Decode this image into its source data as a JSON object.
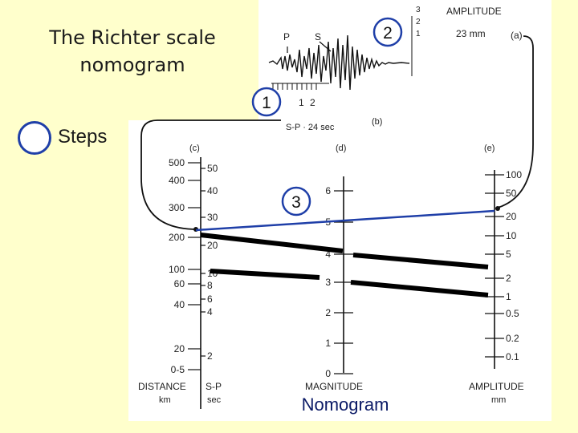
{
  "slide": {
    "title": "The Richter scale nomogram",
    "steps_label": "Steps",
    "caption": "Nomogram",
    "accent_color": "#1f3fa8",
    "background_color": "#ffffcc"
  },
  "figure": {
    "panel_labels": {
      "a": "(a)",
      "b": "(b)",
      "c": "(c)",
      "d": "(d)",
      "e": "(e)"
    },
    "seismogram": {
      "amplitude_heading": "AMPLITUDE",
      "amplitude_value": "23 mm",
      "p_label": "P",
      "s_label": "S",
      "sp_time": "S-P · 24 sec",
      "small_ticks": [
        "1",
        "2"
      ],
      "side_ticks": [
        "1",
        "2",
        "3"
      ]
    },
    "distance_scale": {
      "labels": [
        "500",
        "400",
        "300",
        "200",
        "100",
        "60",
        "40",
        "20",
        "0-5"
      ],
      "sp_labels": [
        "50",
        "40",
        "30",
        "20",
        "10",
        "8",
        "6",
        "4",
        "2"
      ],
      "title": "DISTANCE",
      "unit": "km",
      "sp_title": "S-P",
      "sp_unit": "sec"
    },
    "magnitude_scale": {
      "labels": [
        "6",
        "5",
        "4",
        "3",
        "2",
        "1",
        "0"
      ],
      "title": "MAGNITUDE"
    },
    "amplitude_scale": {
      "labels": [
        "100",
        "50",
        "20",
        "10",
        "5",
        "2",
        "1",
        "0.5",
        "0.2",
        "0.1"
      ],
      "title": "AMPLITUDE",
      "unit": "mm"
    },
    "step_markers": [
      "1",
      "2",
      "3"
    ]
  }
}
